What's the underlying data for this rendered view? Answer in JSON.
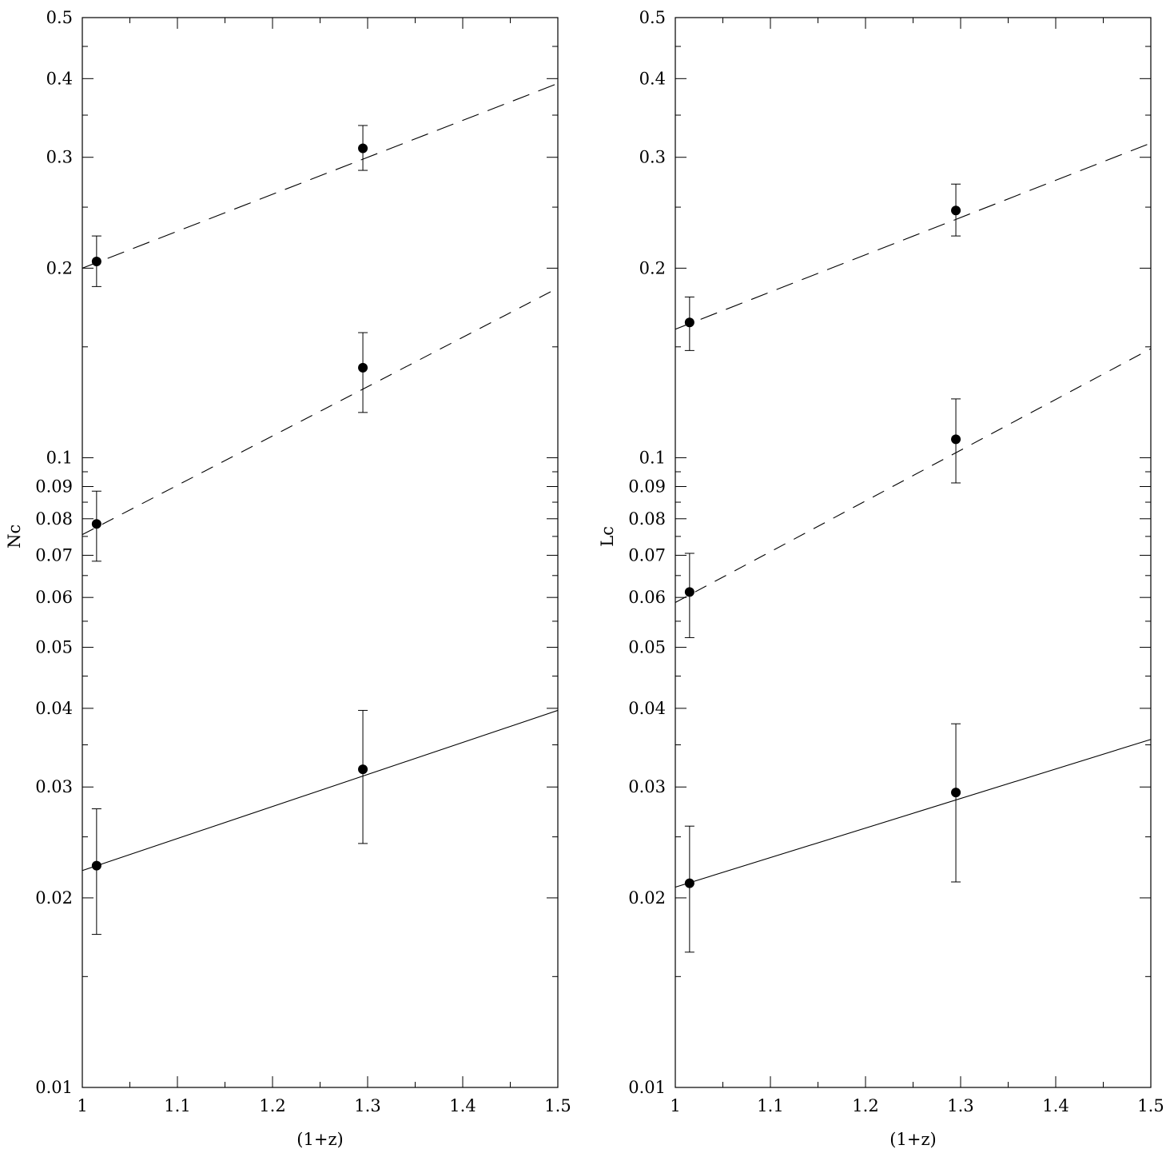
{
  "chart_data": [
    {
      "type": "scatter",
      "xlabel": "(1+z)",
      "ylabel": "Nc",
      "xlim": [
        1,
        1.5
      ],
      "ylim": [
        0.01,
        0.5
      ],
      "yscale": "log",
      "grid": false,
      "x_ticks": [
        "1",
        "1.1",
        "1.2",
        "1.3",
        "1.4",
        "1.5"
      ],
      "y_ticks": [
        "0.01",
        "0.02",
        "0.03",
        "0.04",
        "0.05",
        "0.06",
        "0.07",
        "0.08",
        "0.09",
        "0.1",
        "0.2",
        "0.3",
        "0.4",
        "0.5"
      ],
      "series": [
        {
          "line_style": "long-dashed",
          "x": [
            1.015,
            1.295
          ],
          "y": [
            0.205,
            0.31
          ],
          "err_low": [
            0.187,
            0.286
          ],
          "err_high": [
            0.225,
            0.337
          ],
          "fit": {
            "x": [
              1.0,
              1.5
            ],
            "y": [
              0.2,
              0.393
            ]
          }
        },
        {
          "line_style": "dashed",
          "x": [
            1.015,
            1.295
          ],
          "y": [
            0.0785,
            0.139
          ],
          "err_low": [
            0.0685,
            0.118
          ],
          "err_high": [
            0.0885,
            0.158
          ],
          "fit": {
            "x": [
              1.0,
              1.5
            ],
            "y": [
              0.0755,
              0.186
            ]
          }
        },
        {
          "line_style": "solid",
          "x": [
            1.015,
            1.295
          ],
          "y": [
            0.0225,
            0.032
          ],
          "err_low": [
            0.0175,
            0.0244
          ],
          "err_high": [
            0.0277,
            0.0397
          ],
          "fit": {
            "x": [
              1.0,
              1.5
            ],
            "y": [
              0.0221,
              0.0397
            ]
          }
        }
      ]
    },
    {
      "type": "scatter",
      "xlabel": "(1+z)",
      "ylabel": "Lc",
      "xlim": [
        1,
        1.5
      ],
      "ylim": [
        0.01,
        0.5
      ],
      "yscale": "log",
      "grid": false,
      "x_ticks": [
        "1",
        "1.1",
        "1.2",
        "1.3",
        "1.4",
        "1.5"
      ],
      "y_ticks": [
        "0.01",
        "0.02",
        "0.03",
        "0.04",
        "0.05",
        "0.06",
        "0.07",
        "0.08",
        "0.09",
        "0.1",
        "0.2",
        "0.3",
        "0.4",
        "0.5"
      ],
      "series": [
        {
          "line_style": "long-dashed",
          "x": [
            1.015,
            1.295
          ],
          "y": [
            0.164,
            0.247
          ],
          "err_low": [
            0.148,
            0.225
          ],
          "err_high": [
            0.18,
            0.272
          ],
          "fit": {
            "x": [
              1.0,
              1.5
            ],
            "y": [
              0.16,
              0.316
            ]
          }
        },
        {
          "line_style": "dashed",
          "x": [
            1.015,
            1.295
          ],
          "y": [
            0.0612,
            0.107
          ],
          "err_low": [
            0.0518,
            0.0912
          ],
          "err_high": [
            0.0705,
            0.124
          ],
          "fit": {
            "x": [
              1.0,
              1.5
            ],
            "y": [
              0.0589,
              0.149
            ]
          }
        },
        {
          "line_style": "solid",
          "x": [
            1.015,
            1.295
          ],
          "y": [
            0.0211,
            0.0294
          ],
          "err_low": [
            0.0164,
            0.0212
          ],
          "err_high": [
            0.026,
            0.0378
          ],
          "fit": {
            "x": [
              1.0,
              1.5
            ],
            "y": [
              0.0208,
              0.0357
            ]
          }
        }
      ]
    }
  ]
}
